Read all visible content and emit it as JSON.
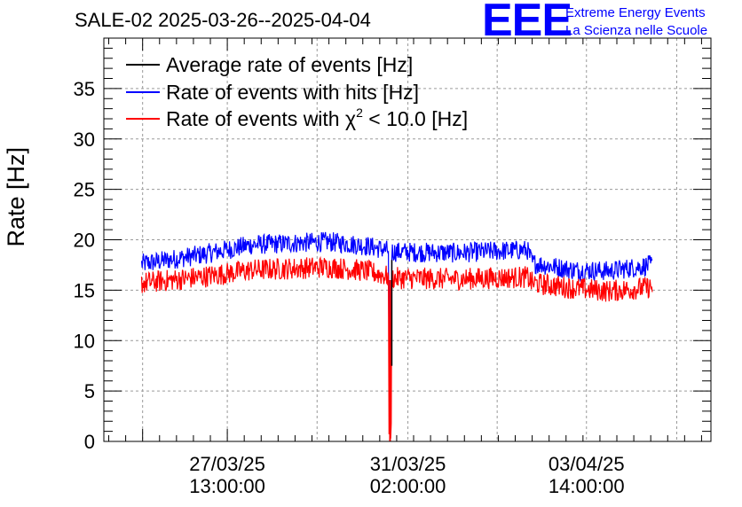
{
  "chart_data": {
    "type": "line",
    "title": "SALE-02 2025-03-26--2025-04-04",
    "ylabel": "Rate [Hz]",
    "xlabel": "",
    "ylim": [
      0,
      40
    ],
    "yticks": [
      0,
      5,
      10,
      15,
      20,
      25,
      30,
      35
    ],
    "grid": true,
    "legend_position": "top-left",
    "x_ticks": [
      {
        "date": "27/03/25",
        "time": "13:00:00",
        "day": 1.02
      },
      {
        "date": "31/03/25",
        "time": "02:00:00",
        "day": 4.56
      },
      {
        "date": "03/04/25",
        "time": "14:00:00",
        "day": 8.06
      }
    ],
    "x_range_days": [
      -1.4,
      10.5
    ],
    "series": [
      {
        "name": "Average rate of events [Hz]",
        "color": "#000000",
        "x_days": [
          -0.66,
          0.5,
          1.5,
          3.0,
          3.75,
          4.3,
          5.5,
          6.9,
          7.0,
          7.8,
          8.5,
          9.35
        ],
        "values": [
          16.0,
          16.5,
          17.3,
          17.6,
          17.2,
          16.4,
          16.3,
          16.6,
          15.9,
          15.4,
          15.1,
          15.5
        ]
      },
      {
        "name": "Rate of events with hits [Hz]",
        "color": "#0000ff",
        "x_days": [
          -0.66,
          0.5,
          1.5,
          3.0,
          3.75,
          4.3,
          5.5,
          6.9,
          7.0,
          7.8,
          8.5,
          9.35
        ],
        "values": [
          17.6,
          18.5,
          19.5,
          19.8,
          19.4,
          18.8,
          18.7,
          19.0,
          17.7,
          17.0,
          16.9,
          17.5
        ],
        "band": 1.0
      },
      {
        "name": "Rate of events with χ² < 10.0 [Hz]",
        "color": "#ff0000",
        "x_days": [
          -0.66,
          0.5,
          1.5,
          3.0,
          3.75,
          4.3,
          5.5,
          6.9,
          7.0,
          7.8,
          8.5,
          9.35
        ],
        "values": [
          15.7,
          16.3,
          17.0,
          17.3,
          16.9,
          16.2,
          16.1,
          16.3,
          15.7,
          15.2,
          14.9,
          15.3
        ],
        "band": 1.1
      }
    ],
    "dropout": {
      "x_days": 4.21,
      "min_value": 0,
      "hits_min": 7.5
    },
    "legend": [
      {
        "label": "Average rate of events [Hz]",
        "color": "#000000"
      },
      {
        "label": "Rate of events with hits [Hz]",
        "color": "#0000ff"
      },
      {
        "label_main": "Rate of events with χ",
        "label_sup": "2",
        "label_tail": " < 10.0 [Hz]",
        "color": "#ff0000"
      }
    ]
  },
  "logo": {
    "text": "EEE",
    "line1": "Extreme Energy Events",
    "line2": "La Scienza nelle Scuole",
    "color": "#0000ff"
  }
}
